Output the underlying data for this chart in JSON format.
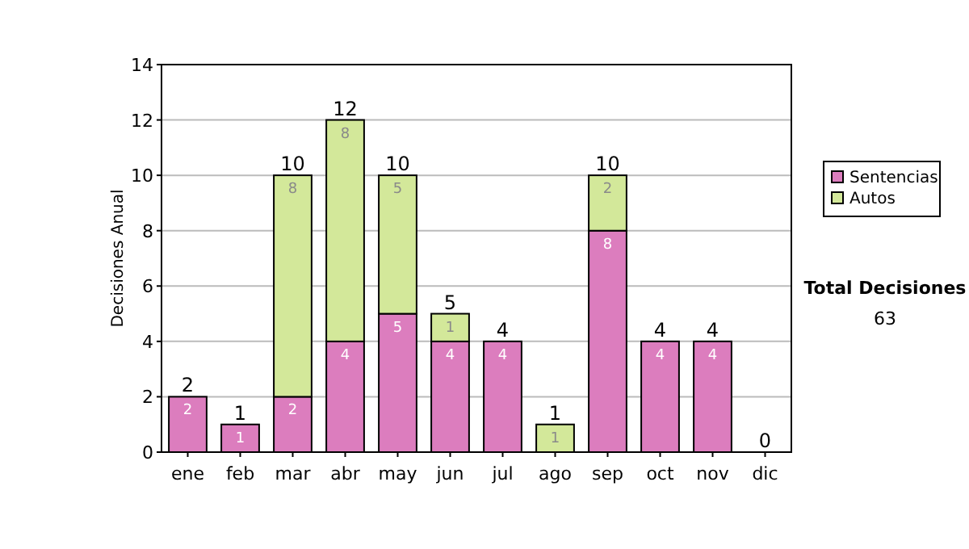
{
  "chart_data": {
    "type": "bar",
    "stacked": true,
    "categories": [
      "ene",
      "feb",
      "mar",
      "abr",
      "may",
      "jun",
      "jul",
      "ago",
      "sep",
      "oct",
      "nov",
      "dic"
    ],
    "series": [
      {
        "name": "Sentencias",
        "color": "#dc7dbe",
        "values": [
          2,
          1,
          2,
          4,
          5,
          4,
          4,
          0,
          8,
          4,
          4,
          0
        ],
        "value_labels": [
          "2",
          "1",
          "2",
          "4",
          "5",
          "4",
          "4",
          null,
          "8",
          "4",
          "4",
          null
        ]
      },
      {
        "name": "Autos",
        "color": "#d3e89a",
        "values": [
          0,
          0,
          8,
          8,
          5,
          1,
          0,
          1,
          2,
          0,
          0,
          0
        ],
        "value_labels": [
          null,
          null,
          "8",
          "8",
          "5",
          "1",
          null,
          "1",
          "2",
          null,
          null,
          null
        ]
      }
    ],
    "totals": [
      "2",
      "1",
      "10",
      "12",
      "10",
      "5",
      "4",
      "1",
      "10",
      "4",
      "4",
      "0"
    ],
    "ylabel": "Decisiones Anual",
    "ylim": [
      0,
      14
    ],
    "yticks": [
      0,
      2,
      4,
      6,
      8,
      10,
      12,
      14
    ],
    "grid": "y",
    "legend": "right",
    "annotations": [
      "Total Decisiones",
      "63"
    ]
  }
}
